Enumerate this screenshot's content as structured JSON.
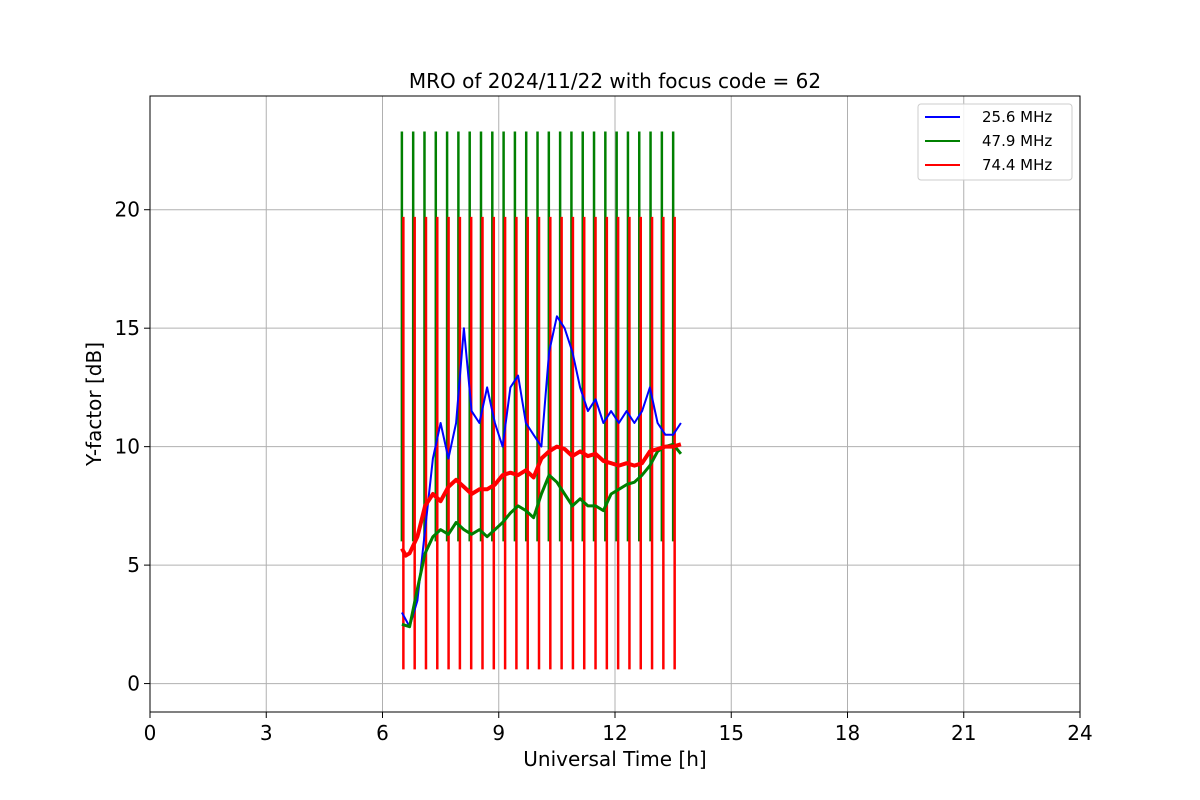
{
  "chart_data": {
    "type": "line",
    "title": "MRO of 2024/11/22 with focus code = 62",
    "xlabel": "Universal Time [h]",
    "ylabel": "Y-factor [dB]",
    "xlim": [
      0,
      24
    ],
    "ylim": [
      -1.2,
      24.8
    ],
    "xticks": [
      0,
      3,
      6,
      9,
      12,
      15,
      18,
      21,
      24
    ],
    "yticks": [
      0,
      5,
      10,
      15,
      20
    ],
    "grid": true,
    "legend_position": "top-right",
    "calibration_spikes": {
      "start_h": 6.5,
      "interval_h": 0.2917,
      "count": 25,
      "series_peak_dB": {
        "47.9 MHz": 23.3,
        "74.4 MHz": 19.7
      },
      "series_trough_dB": {
        "74.4 MHz": 0.6
      }
    },
    "series": [
      {
        "name": "25.6 MHz",
        "color": "#0000ff",
        "x": [
          6.5,
          6.7,
          6.9,
          7.1,
          7.3,
          7.5,
          7.7,
          7.9,
          8.1,
          8.3,
          8.5,
          8.7,
          8.9,
          9.1,
          9.3,
          9.5,
          9.7,
          9.9,
          10.1,
          10.3,
          10.5,
          10.7,
          10.9,
          11.1,
          11.3,
          11.5,
          11.7,
          11.9,
          12.1,
          12.3,
          12.5,
          12.7,
          12.9,
          13.1,
          13.3,
          13.5,
          13.7
        ],
        "y": [
          3.0,
          2.4,
          3.5,
          6.5,
          9.5,
          11.0,
          9.5,
          11.0,
          15.0,
          11.5,
          11.0,
          12.5,
          11.0,
          10.0,
          12.5,
          13.0,
          11.0,
          10.5,
          10.0,
          14.0,
          15.5,
          15.0,
          14.0,
          12.5,
          11.5,
          12.0,
          11.0,
          11.5,
          11.0,
          11.5,
          11.0,
          11.5,
          12.5,
          11.0,
          10.5,
          10.5,
          11.0
        ]
      },
      {
        "name": "47.9 MHz",
        "color": "#008000",
        "x": [
          6.5,
          6.7,
          6.9,
          7.1,
          7.3,
          7.5,
          7.7,
          7.9,
          8.1,
          8.3,
          8.5,
          8.7,
          8.9,
          9.1,
          9.3,
          9.5,
          9.7,
          9.9,
          10.1,
          10.3,
          10.5,
          10.7,
          10.9,
          11.1,
          11.3,
          11.5,
          11.7,
          11.9,
          12.1,
          12.3,
          12.5,
          12.7,
          12.9,
          13.1,
          13.3,
          13.5,
          13.7
        ],
        "y": [
          2.5,
          2.4,
          4.0,
          5.5,
          6.2,
          6.5,
          6.3,
          6.8,
          6.5,
          6.3,
          6.5,
          6.2,
          6.5,
          6.8,
          7.2,
          7.5,
          7.3,
          7.0,
          8.0,
          8.8,
          8.5,
          8.0,
          7.5,
          7.8,
          7.5,
          7.5,
          7.3,
          8.0,
          8.2,
          8.4,
          8.5,
          8.8,
          9.2,
          9.8,
          10.0,
          10.1,
          9.7
        ]
      },
      {
        "name": "74.4 MHz",
        "color": "#ff0000",
        "x": [
          6.5,
          6.6,
          6.7,
          6.9,
          7.1,
          7.3,
          7.5,
          7.7,
          7.9,
          8.1,
          8.3,
          8.5,
          8.7,
          8.9,
          9.1,
          9.3,
          9.5,
          9.7,
          9.9,
          10.1,
          10.3,
          10.5,
          10.7,
          10.9,
          11.1,
          11.3,
          11.5,
          11.7,
          11.9,
          12.1,
          12.3,
          12.5,
          12.7,
          12.9,
          13.1,
          13.3,
          13.5,
          13.7
        ],
        "y": [
          5.7,
          5.4,
          5.5,
          6.2,
          7.5,
          8.0,
          7.7,
          8.3,
          8.6,
          8.3,
          8.0,
          8.2,
          8.2,
          8.4,
          8.8,
          8.9,
          8.8,
          9.0,
          8.7,
          9.5,
          9.8,
          10.0,
          9.9,
          9.6,
          9.8,
          9.6,
          9.7,
          9.4,
          9.3,
          9.2,
          9.3,
          9.2,
          9.3,
          9.8,
          9.9,
          10.0,
          10.0,
          10.1
        ]
      }
    ]
  }
}
